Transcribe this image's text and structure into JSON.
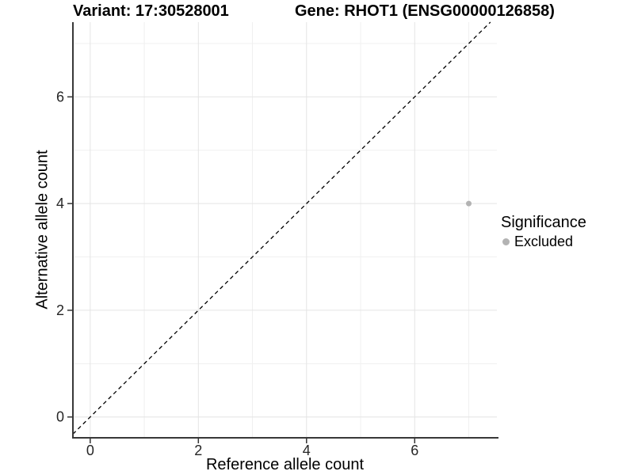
{
  "colors": {
    "background": "#ffffff",
    "axis_line": "#383838",
    "tick_mark": "#333333",
    "tick_label": "#262626",
    "grid_major": "#e4e4e4",
    "grid_minor": "#f0f0f0",
    "identity_line": "#000000",
    "excluded_point": "#b3b3b3"
  },
  "chart_data": {
    "type": "scatter",
    "title_left": "Variant: 17:30528001",
    "title_right": "Gene: RHOT1 (ENSG00000126858)",
    "xlabel": "Reference allele count",
    "ylabel": "Alternative allele count",
    "xlim": [
      -0.32,
      7.52
    ],
    "ylim": [
      -0.39,
      7.4
    ],
    "x_ticks": [
      0,
      2,
      4,
      6
    ],
    "y_ticks": [
      0,
      2,
      4,
      6
    ],
    "x_minor_ticks": [
      1,
      3,
      5,
      7
    ],
    "y_minor_ticks": [
      1,
      3,
      5,
      7
    ],
    "grid": "on",
    "identity_line": {
      "equation": "y = x",
      "style": "dashed",
      "color": "#000000"
    },
    "series": [
      {
        "name": "Excluded",
        "color": "#b3b3b3",
        "points": [
          {
            "x": 7,
            "y": 4
          }
        ]
      }
    ],
    "legend": {
      "title": "Significance",
      "position": "right",
      "items": [
        {
          "label": "Excluded",
          "color": "#b3b3b3",
          "marker": "circle"
        }
      ]
    }
  }
}
